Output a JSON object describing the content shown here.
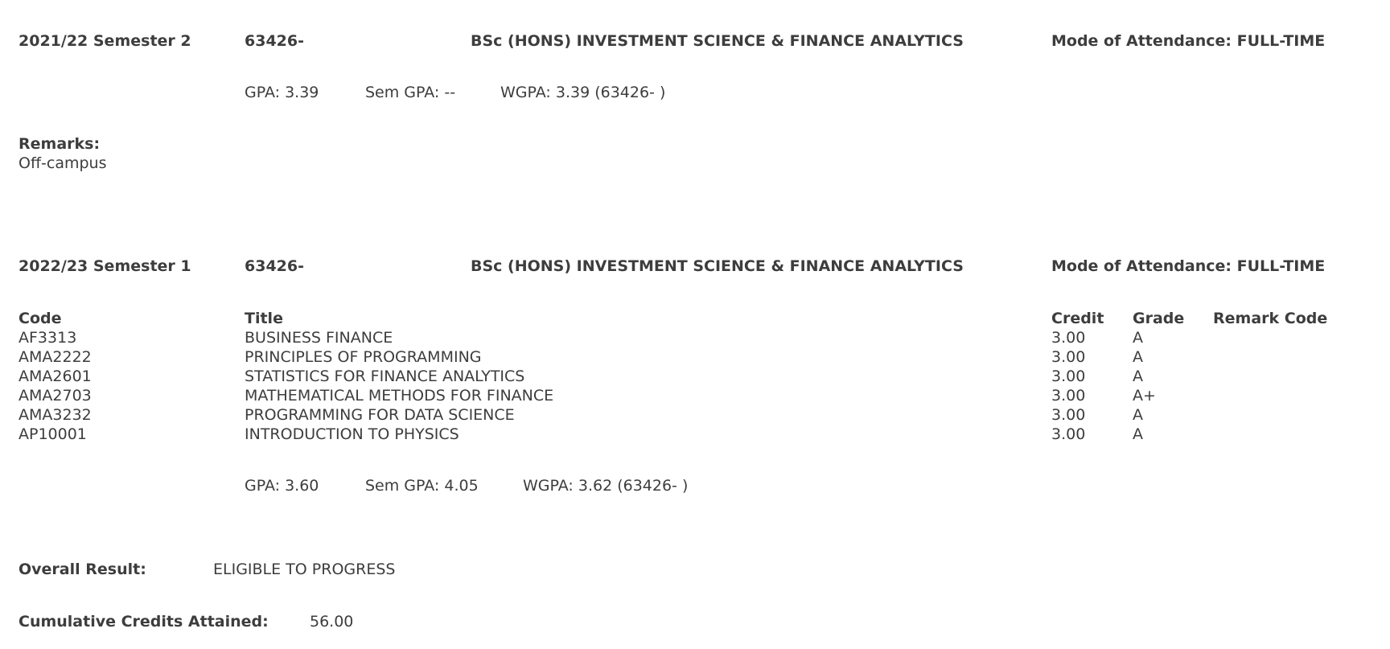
{
  "semesters": [
    {
      "term": "2021/22 Semester 2",
      "program_code": "63426-",
      "program_name": "BSc (HONS) INVESTMENT SCIENCE & FINANCE ANALYTICS",
      "mode_label": "Mode of Attendance:",
      "mode_value": "FULL-TIME",
      "gpa": "GPA: 3.39",
      "sem_gpa": "Sem GPA: --",
      "wgpa": "WGPA: 3.39 (63426- )",
      "remarks_label": "Remarks:",
      "remarks_value": "Off-campus"
    },
    {
      "term": "2022/23 Semester 1",
      "program_code": "63426-",
      "program_name": "BSc (HONS) INVESTMENT SCIENCE & FINANCE ANALYTICS",
      "mode_label": "Mode of Attendance:",
      "mode_value": "FULL-TIME",
      "gpa": "GPA: 3.60",
      "sem_gpa": "Sem GPA: 4.05",
      "wgpa": "WGPA: 3.62 (63426- )"
    }
  ],
  "courses_table": {
    "headers": {
      "code": "Code",
      "title": "Title",
      "credit": "Credit",
      "grade": "Grade",
      "remark_code": "Remark Code"
    },
    "rows": [
      {
        "code": "AF3313",
        "title": "BUSINESS FINANCE",
        "credit": "3.00",
        "grade": "A"
      },
      {
        "code": "AMA2222",
        "title": "PRINCIPLES OF PROGRAMMING",
        "credit": "3.00",
        "grade": "A"
      },
      {
        "code": "AMA2601",
        "title": "STATISTICS FOR FINANCE ANALYTICS",
        "credit": "3.00",
        "grade": "A"
      },
      {
        "code": "AMA2703",
        "title": "MATHEMATICAL METHODS FOR FINANCE",
        "credit": "3.00",
        "grade": "A+"
      },
      {
        "code": "AMA3232",
        "title": "PROGRAMMING FOR DATA SCIENCE",
        "credit": "3.00",
        "grade": "A"
      },
      {
        "code": "AP10001",
        "title": "INTRODUCTION TO PHYSICS",
        "credit": "3.00",
        "grade": "A"
      }
    ]
  },
  "summary": {
    "overall_result_label": "Overall Result:",
    "overall_result_value": "ELIGIBLE TO PROGRESS",
    "cumulative_credits_label": "Cumulative Credits Attained:",
    "cumulative_credits_value": "56.00"
  }
}
